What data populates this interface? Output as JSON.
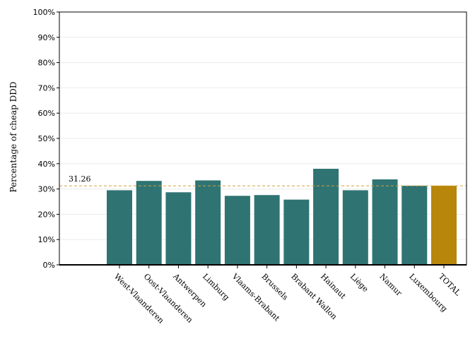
{
  "chart_data": {
    "type": "bar",
    "title": "",
    "xlabel": "",
    "ylabel": "Percentage of cheap DDD",
    "ylim": [
      0,
      100
    ],
    "yticks": [
      0,
      10,
      20,
      30,
      40,
      50,
      60,
      70,
      80,
      90,
      100
    ],
    "ytick_labels": [
      "0%",
      "10%",
      "20%",
      "30%",
      "40%",
      "50%",
      "60%",
      "70%",
      "80%",
      "90%",
      "100%"
    ],
    "categories": [
      "West-Vlaanderen",
      "Oost-Vlaanderen",
      "Antwerpen",
      "Limburg",
      "Vlaams-Brabant",
      "Brussels",
      "Brabant Wallon",
      "Hainaut",
      "Liège",
      "Namur",
      "Luxembourg",
      "TOTAL"
    ],
    "values": [
      29.5,
      33.2,
      28.7,
      33.4,
      27.3,
      27.6,
      25.8,
      38.0,
      29.5,
      33.8,
      31.3,
      31.3
    ],
    "colors": [
      "#2f7472",
      "#2f7472",
      "#2f7472",
      "#2f7472",
      "#2f7472",
      "#2f7472",
      "#2f7472",
      "#2f7472",
      "#2f7472",
      "#2f7472",
      "#2f7472",
      "#b8860b"
    ],
    "reference_line": {
      "value": 31.26,
      "label": "31.26",
      "color": "#d4a040"
    },
    "grid": true,
    "legend": "none"
  }
}
